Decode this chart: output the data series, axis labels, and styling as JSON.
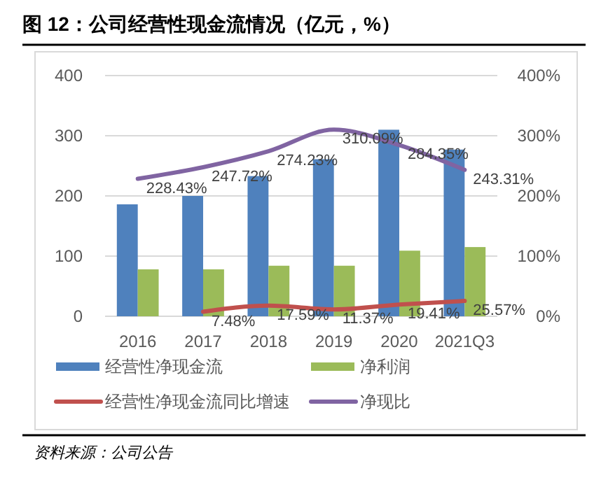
{
  "chart_data": {
    "type": "bar",
    "title": "图 12：公司经营性现金流情况（亿元，%）",
    "annotations": [
      "资料来源：公司公告"
    ],
    "categories": [
      "2016",
      "2017",
      "2018",
      "2019",
      "2020",
      "2021Q3"
    ],
    "series": [
      {
        "name": "经营性净现金流",
        "color": "#4f81bd",
        "values": [
          186,
          200,
          233,
          261,
          310,
          277
        ]
      },
      {
        "name": "净利润",
        "color": "#9bbb59",
        "values": [
          78,
          78,
          84,
          84,
          109,
          115
        ]
      },
      {
        "name": "经营性净现金流同比增速",
        "type": "line",
        "color": "#c0504d",
        "values": [
          null,
          7.48,
          17.59,
          11.37,
          19.41,
          25.57
        ],
        "value_labels": [
          null,
          "7.48%",
          "17.59%",
          "11.37%",
          "19.41%",
          "25.57%"
        ]
      },
      {
        "name": "净现比",
        "type": "line",
        "color": "#8064a2",
        "values": [
          228.43,
          247.72,
          274.23,
          310.09,
          284.35,
          243.31
        ],
        "value_labels": [
          "228.43%",
          "247.72%",
          "274.23%",
          "310.09%",
          "284.35%",
          "243.31%"
        ]
      }
    ],
    "ylim": [
      0,
      400
    ],
    "yticks": [
      0,
      100,
      200,
      300,
      400
    ],
    "y2lim": [
      0,
      400
    ],
    "y2ticks": [
      {
        "value": 0,
        "label": "0%"
      },
      {
        "value": 100,
        "label": "100%"
      },
      {
        "value": 200,
        "label": "200%"
      },
      {
        "value": 300,
        "label": "300%"
      },
      {
        "value": 400,
        "label": "400%"
      }
    ],
    "grid": "y",
    "legend": "bottom",
    "marker": "none",
    "line_style": "solid"
  }
}
